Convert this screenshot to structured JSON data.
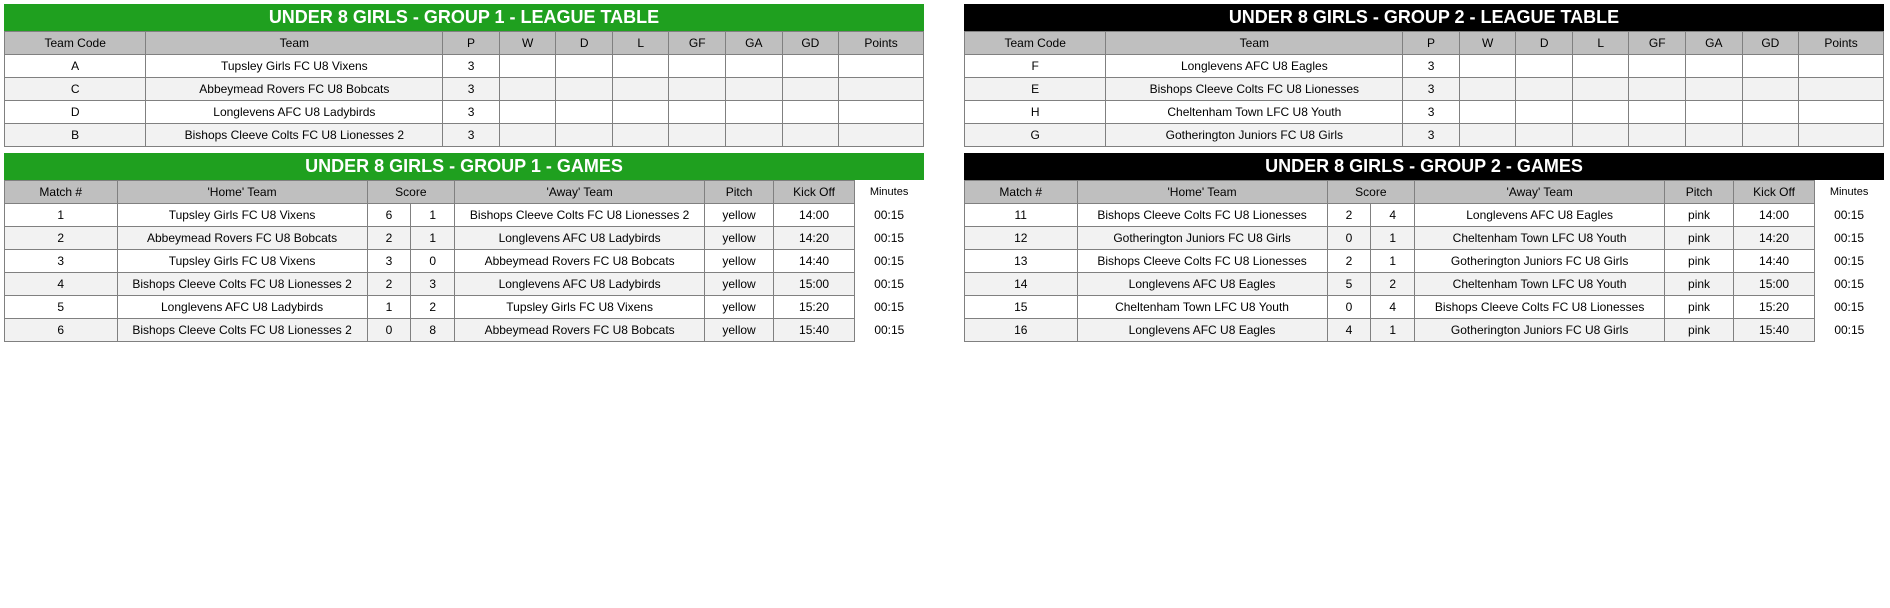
{
  "colors": {
    "group1_header_bg": "#1fa01f",
    "group2_header_bg": "#000000",
    "header_text": "#ffffff",
    "col_header_bg": "#bfbfbf",
    "border": "#808080",
    "row_odd": "#ffffff",
    "row_even": "#f2f2f2"
  },
  "group1": {
    "league_title": "UNDER 8 GIRLS - GROUP 1 - LEAGUE TABLE",
    "league_cols": [
      "Team Code",
      "Team",
      "P",
      "W",
      "D",
      "L",
      "GF",
      "GA",
      "GD",
      "Points"
    ],
    "league_rows": [
      {
        "code": "A",
        "team": "Tupsley Girls FC U8 Vixens",
        "P": "3",
        "W": "",
        "D": "",
        "L": "",
        "GF": "",
        "GA": "",
        "GD": "",
        "Pts": ""
      },
      {
        "code": "C",
        "team": "Abbeymead Rovers FC U8 Bobcats",
        "P": "3",
        "W": "",
        "D": "",
        "L": "",
        "GF": "",
        "GA": "",
        "GD": "",
        "Pts": ""
      },
      {
        "code": "D",
        "team": "Longlevens AFC U8 Ladybirds",
        "P": "3",
        "W": "",
        "D": "",
        "L": "",
        "GF": "",
        "GA": "",
        "GD": "",
        "Pts": ""
      },
      {
        "code": "B",
        "team": "Bishops Cleeve Colts FC U8 Lionesses 2",
        "P": "3",
        "W": "",
        "D": "",
        "L": "",
        "GF": "",
        "GA": "",
        "GD": "",
        "Pts": ""
      }
    ],
    "games_title": "UNDER 8 GIRLS - GROUP 1 - GAMES",
    "games_cols": [
      "Match #",
      "'Home' Team",
      "Score",
      "'Away' Team",
      "Pitch",
      "Kick Off",
      "Minutes"
    ],
    "games_rows": [
      {
        "m": "1",
        "home": "Tupsley Girls FC U8 Vixens",
        "s1": "6",
        "s2": "1",
        "away": "Bishops Cleeve Colts FC U8 Lionesses 2",
        "pitch": "yellow",
        "kick": "14:00",
        "min": "00:15"
      },
      {
        "m": "2",
        "home": "Abbeymead Rovers FC U8 Bobcats",
        "s1": "2",
        "s2": "1",
        "away": "Longlevens AFC U8 Ladybirds",
        "pitch": "yellow",
        "kick": "14:20",
        "min": "00:15"
      },
      {
        "m": "3",
        "home": "Tupsley Girls FC U8 Vixens",
        "s1": "3",
        "s2": "0",
        "away": "Abbeymead Rovers FC U8 Bobcats",
        "pitch": "yellow",
        "kick": "14:40",
        "min": "00:15"
      },
      {
        "m": "4",
        "home": "Bishops Cleeve Colts FC U8 Lionesses 2",
        "s1": "2",
        "s2": "3",
        "away": "Longlevens AFC U8 Ladybirds",
        "pitch": "yellow",
        "kick": "15:00",
        "min": "00:15"
      },
      {
        "m": "5",
        "home": "Longlevens AFC U8 Ladybirds",
        "s1": "1",
        "s2": "2",
        "away": "Tupsley Girls FC U8 Vixens",
        "pitch": "yellow",
        "kick": "15:20",
        "min": "00:15"
      },
      {
        "m": "6",
        "home": "Bishops Cleeve Colts FC U8 Lionesses 2",
        "s1": "0",
        "s2": "8",
        "away": "Abbeymead Rovers FC U8 Bobcats",
        "pitch": "yellow",
        "kick": "15:40",
        "min": "00:15"
      }
    ]
  },
  "group2": {
    "league_title": "UNDER 8 GIRLS - GROUP 2 - LEAGUE TABLE",
    "league_cols": [
      "Team Code",
      "Team",
      "P",
      "W",
      "D",
      "L",
      "GF",
      "GA",
      "GD",
      "Points"
    ],
    "league_rows": [
      {
        "code": "F",
        "team": "Longlevens AFC U8 Eagles",
        "P": "3",
        "W": "",
        "D": "",
        "L": "",
        "GF": "",
        "GA": "",
        "GD": "",
        "Pts": ""
      },
      {
        "code": "E",
        "team": "Bishops Cleeve Colts FC U8 Lionesses",
        "P": "3",
        "W": "",
        "D": "",
        "L": "",
        "GF": "",
        "GA": "",
        "GD": "",
        "Pts": ""
      },
      {
        "code": "H",
        "team": "Cheltenham Town LFC U8 Youth",
        "P": "3",
        "W": "",
        "D": "",
        "L": "",
        "GF": "",
        "GA": "",
        "GD": "",
        "Pts": ""
      },
      {
        "code": "G",
        "team": "Gotherington Juniors FC U8 Girls",
        "P": "3",
        "W": "",
        "D": "",
        "L": "",
        "GF": "",
        "GA": "",
        "GD": "",
        "Pts": ""
      }
    ],
    "games_title": "UNDER 8 GIRLS - GROUP 2 - GAMES",
    "games_cols": [
      "Match #",
      "'Home' Team",
      "Score",
      "'Away' Team",
      "Pitch",
      "Kick Off",
      "Minutes"
    ],
    "games_rows": [
      {
        "m": "11",
        "home": "Bishops Cleeve Colts FC U8 Lionesses",
        "s1": "2",
        "s2": "4",
        "away": "Longlevens AFC U8 Eagles",
        "pitch": "pink",
        "kick": "14:00",
        "min": "00:15"
      },
      {
        "m": "12",
        "home": "Gotherington Juniors FC U8 Girls",
        "s1": "0",
        "s2": "1",
        "away": "Cheltenham Town LFC U8 Youth",
        "pitch": "pink",
        "kick": "14:20",
        "min": "00:15"
      },
      {
        "m": "13",
        "home": "Bishops Cleeve Colts FC U8 Lionesses",
        "s1": "2",
        "s2": "1",
        "away": "Gotherington Juniors FC U8 Girls",
        "pitch": "pink",
        "kick": "14:40",
        "min": "00:15"
      },
      {
        "m": "14",
        "home": "Longlevens AFC U8 Eagles",
        "s1": "5",
        "s2": "2",
        "away": "Cheltenham Town LFC U8 Youth",
        "pitch": "pink",
        "kick": "15:00",
        "min": "00:15"
      },
      {
        "m": "15",
        "home": "Cheltenham Town LFC U8 Youth",
        "s1": "0",
        "s2": "4",
        "away": "Bishops Cleeve Colts FC U8 Lionesses",
        "pitch": "pink",
        "kick": "15:20",
        "min": "00:15"
      },
      {
        "m": "16",
        "home": "Longlevens AFC U8 Eagles",
        "s1": "4",
        "s2": "1",
        "away": "Gotherington Juniors FC U8 Girls",
        "pitch": "pink",
        "kick": "15:40",
        "min": "00:15"
      }
    ]
  },
  "league_col_widths": [
    100,
    210,
    40,
    40,
    40,
    40,
    40,
    40,
    40,
    60
  ],
  "games_col_widths": [
    90,
    200,
    35,
    35,
    200,
    55,
    65,
    55
  ]
}
